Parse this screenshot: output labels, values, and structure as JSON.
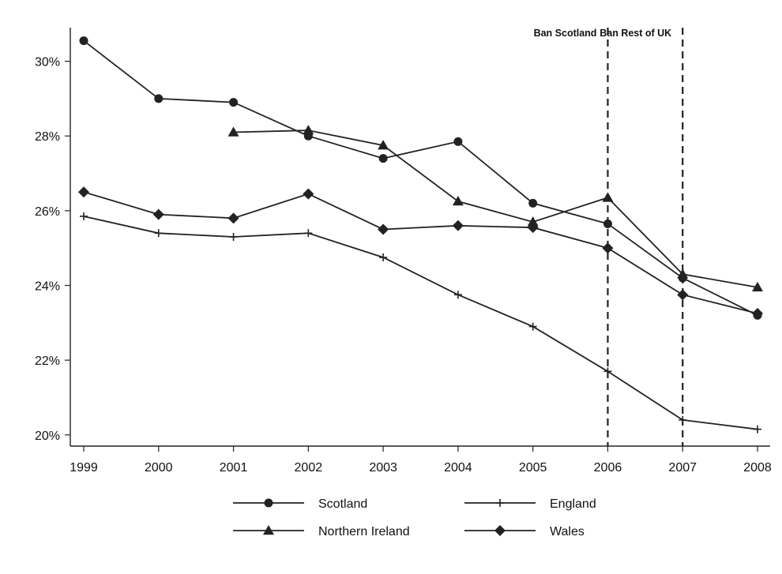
{
  "chart_data": {
    "type": "line",
    "title": "",
    "xlabel": "",
    "ylabel": "",
    "x": [
      1999,
      2000,
      2001,
      2002,
      2003,
      2004,
      2005,
      2006,
      2007,
      2008
    ],
    "x_tick_labels": [
      "1999",
      "2000",
      "2001",
      "2002",
      "2003",
      "2004",
      "2005",
      "2006",
      "2007",
      "2008"
    ],
    "ylim": [
      19.7,
      30.9
    ],
    "y_ticks": [
      20,
      22,
      24,
      26,
      28,
      30
    ],
    "y_tick_labels": [
      "20%",
      "22%",
      "24%",
      "26%",
      "28%",
      "30%"
    ],
    "grid": false,
    "legend_position": "bottom",
    "series": [
      {
        "name": "Scotland",
        "marker": "circle",
        "values": [
          30.55,
          29.0,
          28.9,
          28.0,
          27.4,
          27.85,
          26.2,
          25.65,
          24.2,
          23.2
        ]
      },
      {
        "name": "England",
        "marker": "plus",
        "values": [
          25.85,
          25.4,
          25.3,
          25.4,
          24.75,
          23.75,
          22.9,
          21.7,
          20.4,
          20.15
        ]
      },
      {
        "name": "Northern Ireland",
        "marker": "triangle",
        "values": [
          null,
          null,
          28.1,
          28.15,
          27.75,
          26.25,
          25.7,
          26.35,
          24.3,
          23.95
        ]
      },
      {
        "name": "Wales",
        "marker": "diamond",
        "values": [
          26.5,
          25.9,
          25.8,
          26.45,
          25.5,
          25.6,
          25.55,
          25.0,
          23.75,
          23.25
        ]
      }
    ],
    "annotations": [
      {
        "x": 2006,
        "label": "Ban Scotland",
        "line": "dashed"
      },
      {
        "x": 2007,
        "label": "Ban Rest of UK",
        "line": "dashed"
      }
    ]
  },
  "colors": {
    "line": "#222222",
    "axis": "#222222",
    "background": "#ffffff"
  }
}
